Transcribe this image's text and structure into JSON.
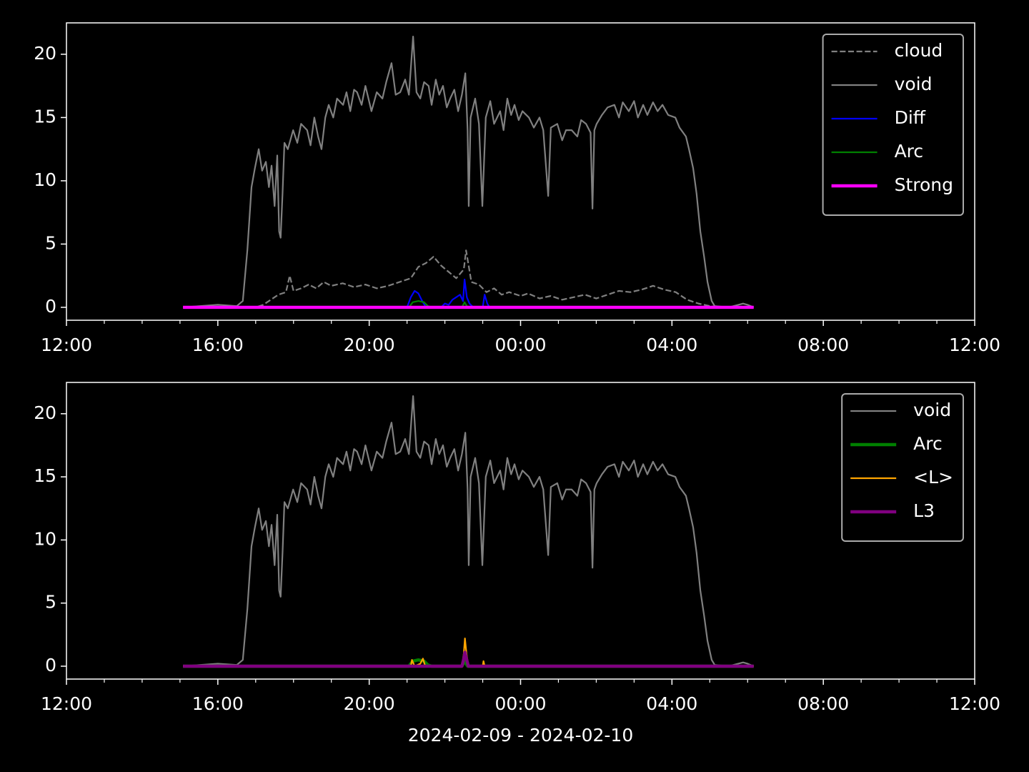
{
  "chart_data": [
    {
      "type": "line",
      "xlim": [
        0,
        24
      ],
      "ylim": [
        -1.02,
        22.48
      ],
      "xticks": [
        {
          "value": 0,
          "label": "12:00"
        },
        {
          "value": 4,
          "label": "16:00"
        },
        {
          "value": 8,
          "label": "20:00"
        },
        {
          "value": 12,
          "label": "00:00"
        },
        {
          "value": 16,
          "label": "04:00"
        },
        {
          "value": 20,
          "label": "08:00"
        },
        {
          "value": 24,
          "label": "12:00"
        }
      ],
      "xminorticks": [
        1,
        2,
        3,
        5,
        6,
        7,
        9,
        10,
        11,
        13,
        14,
        15,
        17,
        18,
        19,
        21,
        22,
        23
      ],
      "yticks": [
        0,
        5,
        10,
        15,
        20
      ],
      "legend": "upper right",
      "series": [
        {
          "name": "cloud",
          "color": "#808080",
          "linestyle": "dashed",
          "linewidth": 1,
          "x": [
            3.08,
            4.5,
            5.0,
            5.2,
            5.4,
            5.6,
            5.8,
            5.9,
            6.0,
            6.2,
            6.4,
            6.6,
            6.8,
            7.0,
            7.3,
            7.6,
            7.9,
            8.2,
            8.5,
            8.8,
            9.1,
            9.3,
            9.5,
            9.7,
            9.9,
            10.1,
            10.3,
            10.5,
            10.56,
            10.7,
            10.9,
            11.1,
            11.3,
            11.5,
            11.7,
            12.0,
            12.2,
            12.5,
            12.8,
            13.1,
            13.4,
            13.7,
            14.0,
            14.3,
            14.6,
            14.9,
            15.2,
            15.5,
            15.8,
            16.1,
            16.4,
            16.7,
            17.0,
            17.3,
            18.16
          ],
          "values": [
            0,
            0,
            0,
            0.2,
            0.6,
            1,
            1.2,
            2.5,
            1.3,
            1.5,
            1.8,
            1.5,
            2,
            1.7,
            1.9,
            1.6,
            1.8,
            1.5,
            1.7,
            2,
            2.3,
            3.2,
            3.5,
            4,
            3.3,
            2.8,
            2.3,
            3,
            4.5,
            2,
            1.8,
            1.2,
            1.5,
            1,
            1.2,
            0.9,
            1.1,
            0.7,
            0.9,
            0.6,
            0.8,
            1,
            0.7,
            1,
            1.3,
            1.2,
            1.4,
            1.7,
            1.4,
            1.2,
            0.6,
            0.3,
            0.1,
            0,
            0
          ]
        },
        {
          "name": "void",
          "color": "#808080",
          "linestyle": "solid",
          "linewidth": 1,
          "x": [
            3.08,
            4.0,
            4.5,
            4.66,
            4.78,
            4.89,
            4.98,
            5.08,
            5.17,
            5.27,
            5.35,
            5.42,
            5.5,
            5.57,
            5.62,
            5.66,
            5.71,
            5.76,
            5.85,
            5.99,
            6.1,
            6.2,
            6.36,
            6.45,
            6.55,
            6.65,
            6.74,
            6.84,
            6.93,
            7.05,
            7.15,
            7.31,
            7.4,
            7.5,
            7.6,
            7.68,
            7.8,
            7.9,
            8.06,
            8.2,
            8.35,
            8.45,
            8.59,
            8.7,
            8.82,
            8.95,
            9.05,
            9.16,
            9.25,
            9.35,
            9.45,
            9.57,
            9.65,
            9.76,
            9.85,
            9.95,
            10.05,
            10.14,
            10.25,
            10.35,
            10.45,
            10.54,
            10.6,
            10.63,
            10.68,
            10.8,
            10.9,
            10.99,
            11.08,
            11.2,
            11.3,
            11.46,
            11.55,
            11.65,
            11.75,
            11.84,
            11.95,
            12.05,
            12.22,
            12.35,
            12.5,
            12.6,
            12.73,
            12.8,
            12.97,
            13.1,
            13.2,
            13.35,
            13.5,
            13.6,
            13.73,
            13.85,
            13.9,
            13.95,
            14.01,
            14.15,
            14.3,
            14.48,
            14.6,
            14.7,
            14.86,
            15.0,
            15.1,
            15.24,
            15.35,
            15.5,
            15.62,
            15.75,
            15.9,
            16.09,
            16.2,
            16.37,
            16.45,
            16.56,
            16.65,
            16.75,
            16.85,
            16.94,
            17.05,
            17.13,
            17.5,
            17.88,
            18.0,
            18.16
          ],
          "values": [
            0,
            0.2,
            0.1,
            0.5,
            4.5,
            9.5,
            11,
            12.5,
            10.8,
            11.5,
            9.5,
            11.2,
            8,
            12,
            6,
            5.5,
            9,
            13,
            12.5,
            14,
            13,
            14.5,
            14,
            12.8,
            15,
            13.5,
            12.5,
            15,
            16,
            15,
            16.5,
            16,
            17,
            15.5,
            17.2,
            17,
            16,
            17.5,
            15.5,
            17,
            16.5,
            17.8,
            19.3,
            16.8,
            17,
            18,
            16.8,
            21.4,
            17,
            16.5,
            17.8,
            17.5,
            16,
            18,
            16.8,
            17.5,
            15.8,
            16.5,
            17.2,
            15.5,
            16.8,
            18.5,
            14,
            8,
            15,
            16.5,
            14.5,
            8,
            15,
            16.3,
            14.5,
            15.5,
            14,
            16.5,
            15.2,
            16,
            14.8,
            15.5,
            15,
            14.2,
            15,
            14,
            8.8,
            14.2,
            14.5,
            13.2,
            14,
            14,
            13.5,
            14.8,
            14.5,
            13.8,
            7.8,
            14,
            14.5,
            15.2,
            15.8,
            16,
            15,
            16.2,
            15.5,
            16.3,
            15,
            16,
            15.2,
            16.2,
            15.5,
            16,
            15.2,
            15,
            14.2,
            13.5,
            12.5,
            11,
            9,
            6,
            4,
            2,
            0.5,
            0.1,
            0,
            0.3,
            0.2,
            0
          ]
        },
        {
          "name": "Diff",
          "color": "#0000ff",
          "linestyle": "solid",
          "linewidth": 1,
          "x": [
            3.08,
            9.0,
            9.1,
            9.2,
            9.3,
            9.4,
            9.5,
            9.9,
            10.0,
            10.1,
            10.2,
            10.3,
            10.4,
            10.48,
            10.52,
            10.58,
            10.65,
            10.75,
            11.0,
            11.05,
            11.12,
            11.18,
            18.16
          ],
          "values": [
            0,
            0,
            0.8,
            1.3,
            1.1,
            0.5,
            0,
            0,
            0.3,
            0.2,
            0.6,
            0.8,
            1.0,
            0.5,
            2.2,
            0.8,
            0.3,
            0,
            0,
            1.0,
            0.3,
            0,
            0
          ]
        },
        {
          "name": "Arc",
          "color": "#008000",
          "linestyle": "solid",
          "linewidth": 1,
          "x": [
            3.08,
            9.05,
            9.15,
            9.3,
            9.45,
            9.55,
            9.65,
            10.45,
            10.52,
            10.6,
            18.16
          ],
          "values": [
            0,
            0,
            0.4,
            0.5,
            0.4,
            0.1,
            0,
            0,
            0.4,
            0,
            0
          ]
        },
        {
          "name": "Strong",
          "color": "#ff00ff",
          "linestyle": "solid",
          "linewidth": 2,
          "x": [
            3.08,
            18.16
          ],
          "values": [
            0,
            0
          ]
        }
      ]
    },
    {
      "type": "line",
      "xlabel": "2024-02-09 - 2024-02-10",
      "xlim": [
        0,
        24
      ],
      "ylim": [
        -1.02,
        22.48
      ],
      "xticks": [
        {
          "value": 0,
          "label": "12:00"
        },
        {
          "value": 4,
          "label": "16:00"
        },
        {
          "value": 8,
          "label": "20:00"
        },
        {
          "value": 12,
          "label": "00:00"
        },
        {
          "value": 16,
          "label": "04:00"
        },
        {
          "value": 20,
          "label": "08:00"
        },
        {
          "value": 24,
          "label": "12:00"
        }
      ],
      "xminorticks": [
        1,
        2,
        3,
        5,
        6,
        7,
        9,
        10,
        11,
        13,
        14,
        15,
        17,
        18,
        19,
        21,
        22,
        23
      ],
      "yticks": [
        0,
        5,
        10,
        15,
        20
      ],
      "legend": "upper right",
      "series": [
        {
          "name": "void",
          "color": "#808080",
          "linestyle": "solid",
          "linewidth": 1,
          "x": [
            3.08,
            4.0,
            4.5,
            4.66,
            4.78,
            4.89,
            4.98,
            5.08,
            5.17,
            5.27,
            5.35,
            5.42,
            5.5,
            5.57,
            5.62,
            5.66,
            5.71,
            5.76,
            5.85,
            5.99,
            6.1,
            6.2,
            6.36,
            6.45,
            6.55,
            6.65,
            6.74,
            6.84,
            6.93,
            7.05,
            7.15,
            7.31,
            7.4,
            7.5,
            7.6,
            7.68,
            7.8,
            7.9,
            8.06,
            8.2,
            8.35,
            8.45,
            8.59,
            8.7,
            8.82,
            8.95,
            9.05,
            9.16,
            9.25,
            9.35,
            9.45,
            9.57,
            9.65,
            9.76,
            9.85,
            9.95,
            10.05,
            10.14,
            10.25,
            10.35,
            10.45,
            10.54,
            10.6,
            10.63,
            10.68,
            10.8,
            10.9,
            10.99,
            11.08,
            11.2,
            11.3,
            11.46,
            11.55,
            11.65,
            11.75,
            11.84,
            11.95,
            12.05,
            12.22,
            12.35,
            12.5,
            12.6,
            12.73,
            12.8,
            12.97,
            13.1,
            13.2,
            13.35,
            13.5,
            13.6,
            13.73,
            13.85,
            13.9,
            13.95,
            14.01,
            14.15,
            14.3,
            14.48,
            14.6,
            14.7,
            14.86,
            15.0,
            15.1,
            15.24,
            15.35,
            15.5,
            15.62,
            15.75,
            15.9,
            16.09,
            16.2,
            16.37,
            16.45,
            16.56,
            16.65,
            16.75,
            16.85,
            16.94,
            17.05,
            17.13,
            17.5,
            17.88,
            18.0,
            18.16
          ],
          "values": [
            0,
            0.2,
            0.1,
            0.5,
            4.5,
            9.5,
            11,
            12.5,
            10.8,
            11.5,
            9.5,
            11.2,
            8,
            12,
            6,
            5.5,
            9,
            13,
            12.5,
            14,
            13,
            14.5,
            14,
            12.8,
            15,
            13.5,
            12.5,
            15,
            16,
            15,
            16.5,
            16,
            17,
            15.5,
            17.2,
            17,
            16,
            17.5,
            15.5,
            17,
            16.5,
            17.8,
            19.3,
            16.8,
            17,
            18,
            16.8,
            21.4,
            17,
            16.5,
            17.8,
            17.5,
            16,
            18,
            16.8,
            17.5,
            15.8,
            16.5,
            17.2,
            15.5,
            16.8,
            18.5,
            14,
            8,
            15,
            16.5,
            14.5,
            8,
            15,
            16.3,
            14.5,
            15.5,
            14,
            16.5,
            15.2,
            16,
            14.8,
            15.5,
            15,
            14.2,
            15,
            14,
            8.8,
            14.2,
            14.5,
            13.2,
            14,
            14,
            13.5,
            14.8,
            14.5,
            13.8,
            7.8,
            14,
            14.5,
            15.2,
            15.8,
            16,
            15,
            16.2,
            15.5,
            16.3,
            15,
            16,
            15.2,
            16.2,
            15.5,
            16,
            15.2,
            15,
            14.2,
            13.5,
            12.5,
            11,
            9,
            6,
            4,
            2,
            0.5,
            0.1,
            0,
            0.3,
            0.2,
            0
          ]
        },
        {
          "name": "Arc",
          "color": "#008000",
          "linestyle": "solid",
          "linewidth": 2,
          "x": [
            3.08,
            9.05,
            9.15,
            9.3,
            9.45,
            9.55,
            9.65,
            10.45,
            10.52,
            10.6,
            18.16
          ],
          "values": [
            0,
            0,
            0.4,
            0.5,
            0.4,
            0.1,
            0,
            0,
            0.4,
            0,
            0
          ]
        },
        {
          "name": "<L>",
          "color": "#ffa500",
          "linestyle": "solid",
          "linewidth": 1,
          "x": [
            3.08,
            9.1,
            9.13,
            9.2,
            9.35,
            9.42,
            9.48,
            10.45,
            10.5,
            10.53,
            10.57,
            10.62,
            11.0,
            11.02,
            11.05,
            18.16
          ],
          "values": [
            0,
            0,
            0.5,
            0,
            0.2,
            0.6,
            0,
            0,
            1.0,
            2.2,
            1.0,
            0,
            0,
            0.4,
            0,
            0
          ]
        },
        {
          "name": "L3",
          "color": "#800080",
          "linestyle": "solid",
          "linewidth": 2,
          "x": [
            3.08,
            10.45,
            10.5,
            10.53,
            10.57,
            10.62,
            18.16
          ],
          "values": [
            0,
            0,
            0.6,
            1.1,
            0.6,
            0,
            0
          ]
        }
      ]
    }
  ]
}
